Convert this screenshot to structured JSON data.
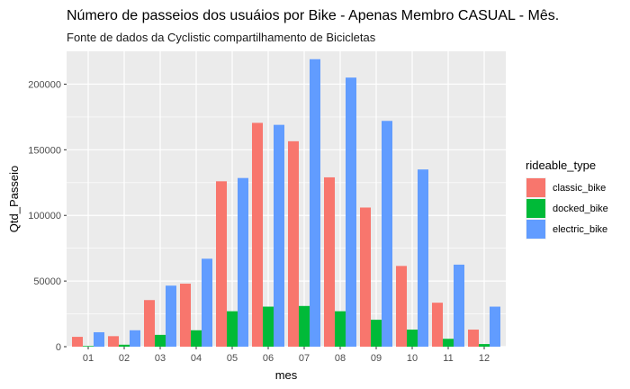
{
  "chart_data": {
    "type": "bar",
    "title": "Número de passeios dos usuáios por Bike - Apenas Membro CASUAL - Mês.",
    "subtitle": "Fonte de dados da Cyclistic compartilhamento de Bicicletas",
    "xlabel": "mes",
    "ylabel": "Qtd_Passeio",
    "categories": [
      "01",
      "02",
      "03",
      "04",
      "05",
      "06",
      "07",
      "08",
      "09",
      "10",
      "11",
      "12"
    ],
    "ylim": [
      0,
      225000
    ],
    "yticks": [
      0,
      50000,
      100000,
      150000,
      200000
    ],
    "ytick_labels": [
      "0",
      "50000",
      "100000",
      "150000",
      "200000"
    ],
    "grid": true,
    "legend": {
      "title": "rideable_type",
      "position": "right"
    },
    "series": [
      {
        "name": "classic_bike",
        "color": "#F8766D",
        "values": [
          7500,
          8000,
          35500,
          48000,
          126000,
          170500,
          156500,
          129000,
          106000,
          61500,
          33500,
          13000
        ]
      },
      {
        "name": "docked_bike",
        "color": "#00BA38",
        "values": [
          500,
          1500,
          9000,
          12500,
          27000,
          30500,
          31000,
          27000,
          20500,
          13000,
          6000,
          2000
        ]
      },
      {
        "name": "electric_bike",
        "color": "#619CFF",
        "values": [
          11000,
          12500,
          46500,
          67000,
          128500,
          169000,
          219000,
          205000,
          172000,
          135000,
          62500,
          30500
        ]
      }
    ]
  }
}
